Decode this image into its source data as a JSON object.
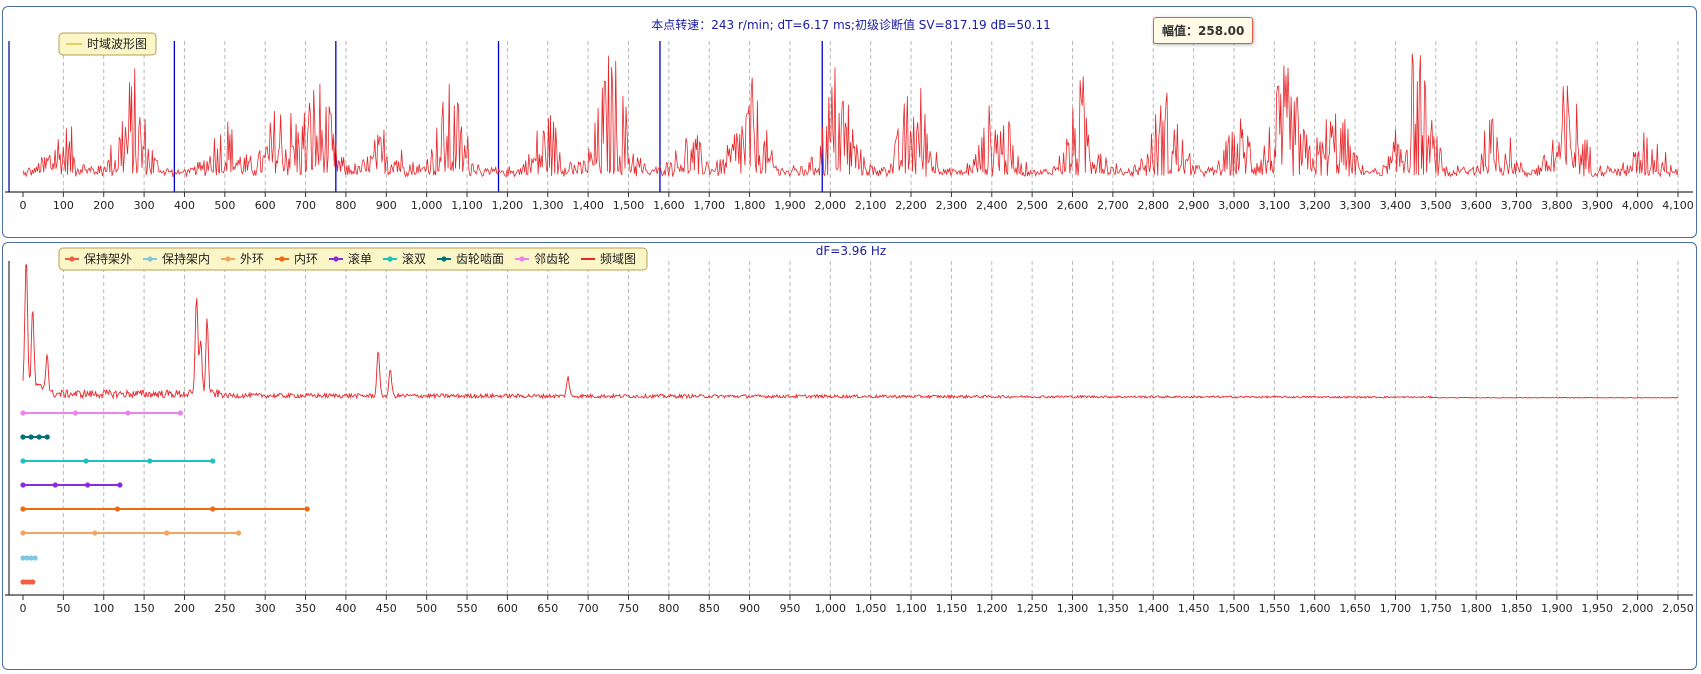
{
  "top_chart": {
    "title": "本点转速：243 r/min; dT=6.17 ms;初级诊断值 SV=817.19 dB=50.11",
    "legend": "时域波形图",
    "tooltip": {
      "label": "幅值：",
      "value": "258.00"
    },
    "colors": {
      "wave": "#e8262a",
      "cursor": "#0000cc",
      "grid": "#b8b8b8",
      "legend_bg": "#fbf6c8",
      "legend_border": "#b8a050"
    }
  },
  "bottom_chart": {
    "title": "dF=3.96 Hz",
    "legend": [
      "保持架外",
      "保持架内",
      "外环",
      "内环",
      "滚单",
      "滚双",
      "齿轮啮面",
      "邻齿轮",
      "频域图"
    ]
  },
  "chart_data": [
    {
      "type": "line",
      "title": "本点转速：243 r/min; dT=6.17 ms;初级诊断值 SV=817.19 dB=50.11",
      "xlabel": "",
      "ylabel": "",
      "xlim": [
        0,
        4100
      ],
      "x_ticks": [
        "0",
        "100",
        "200",
        "300",
        "400",
        "500",
        "600",
        "700",
        "800",
        "900",
        "1,000",
        "1,100",
        "1,200",
        "1,300",
        "1,400",
        "1,500",
        "1,600",
        "1,700",
        "1,800",
        "1,900",
        "2,000",
        "2,100",
        "2,200",
        "2,300",
        "2,400",
        "2,500",
        "2,600",
        "2,700",
        "2,800",
        "2,900",
        "3,000",
        "3,100",
        "3,200",
        "3,300",
        "3,400",
        "3,500",
        "3,600",
        "3,700",
        "3,800",
        "3,900",
        "4,000",
        "4,100"
      ],
      "grid": "vertical dashed",
      "legend_placement": "top-left",
      "series": [
        {
          "name": "时域波形图",
          "color": "#e8262a",
          "baseline": 5,
          "bursts": [
            {
              "x": 100,
              "peak": 50
            },
            {
              "x": 270,
              "peak": 100
            },
            {
              "x": 500,
              "peak": 55
            },
            {
              "x": 640,
              "peak": 70
            },
            {
              "x": 730,
              "peak": 95
            },
            {
              "x": 900,
              "peak": 45
            },
            {
              "x": 1060,
              "peak": 85
            },
            {
              "x": 1300,
              "peak": 60
            },
            {
              "x": 1460,
              "peak": 120
            },
            {
              "x": 1650,
              "peak": 40
            },
            {
              "x": 1800,
              "peak": 90
            },
            {
              "x": 2020,
              "peak": 110
            },
            {
              "x": 2210,
              "peak": 95
            },
            {
              "x": 2410,
              "peak": 75
            },
            {
              "x": 2630,
              "peak": 95
            },
            {
              "x": 2830,
              "peak": 80
            },
            {
              "x": 3020,
              "peak": 55
            },
            {
              "x": 3130,
              "peak": 100
            },
            {
              "x": 3250,
              "peak": 70
            },
            {
              "x": 3450,
              "peak": 120
            },
            {
              "x": 3650,
              "peak": 55
            },
            {
              "x": 3830,
              "peak": 90
            },
            {
              "x": 4030,
              "peak": 40
            }
          ]
        }
      ],
      "cursors_x": [
        -40,
        375,
        775,
        1178,
        1578,
        1980
      ]
    },
    {
      "type": "line",
      "title": "dF=3.96 Hz",
      "xlabel": "",
      "ylabel": "",
      "xlim": [
        0,
        2050
      ],
      "x_ticks": [
        "0",
        "50",
        "100",
        "150",
        "200",
        "250",
        "300",
        "350",
        "400",
        "450",
        "500",
        "550",
        "600",
        "650",
        "700",
        "750",
        "800",
        "850",
        "900",
        "950",
        "1,000",
        "1,050",
        "1,100",
        "1,150",
        "1,200",
        "1,250",
        "1,300",
        "1,350",
        "1,400",
        "1,450",
        "1,500",
        "1,550",
        "1,600",
        "1,650",
        "1,700",
        "1,750",
        "1,800",
        "1,850",
        "1,900",
        "1,950",
        "2,000",
        "2,050"
      ],
      "grid": "vertical dashed",
      "legend_placement": "top-left",
      "spectrum": {
        "name": "频域图",
        "color": "#e8262a",
        "peaks": [
          {
            "x": 4,
            "v": 1.0
          },
          {
            "x": 12,
            "v": 0.58
          },
          {
            "x": 30,
            "v": 0.28
          },
          {
            "x": 215,
            "v": 0.73
          },
          {
            "x": 228,
            "v": 0.55
          },
          {
            "x": 220,
            "v": 0.4
          },
          {
            "x": 440,
            "v": 0.35
          },
          {
            "x": 455,
            "v": 0.2
          },
          {
            "x": 675,
            "v": 0.15
          }
        ],
        "noise_end": 1750
      },
      "fault_series": [
        {
          "name": "邻齿轮",
          "color": "#ee82ee",
          "x": [
            0,
            65,
            130,
            195
          ]
        },
        {
          "name": "齿轮啮面",
          "color": "#00707a",
          "x": [
            0,
            10,
            20,
            30
          ]
        },
        {
          "name": "滚双",
          "color": "#20c0c0",
          "x": [
            0,
            78,
            157,
            235
          ]
        },
        {
          "name": "滚单",
          "color": "#8a2be2",
          "x": [
            0,
            40,
            80,
            120
          ]
        },
        {
          "name": "内环",
          "color": "#ee6a10",
          "x": [
            0,
            117,
            235,
            352
          ]
        },
        {
          "name": "外环",
          "color": "#f4a460",
          "x": [
            0,
            89,
            178,
            267
          ]
        },
        {
          "name": "保持架内",
          "color": "#80c8e0",
          "x": [
            0,
            5,
            10,
            15
          ]
        },
        {
          "name": "保持架外",
          "color": "#f06040",
          "x": [
            0,
            4,
            8,
            12
          ]
        }
      ],
      "legend_order": [
        {
          "name": "保持架外",
          "color": "#f06040"
        },
        {
          "name": "保持架内",
          "color": "#80c8e0"
        },
        {
          "name": "外环",
          "color": "#f4a460"
        },
        {
          "name": "内环",
          "color": "#ee6a10"
        },
        {
          "name": "滚单",
          "color": "#8a2be2"
        },
        {
          "name": "滚双",
          "color": "#20c0c0"
        },
        {
          "name": "齿轮啮面",
          "color": "#00707a"
        },
        {
          "name": "邻齿轮",
          "color": "#ee82ee"
        },
        {
          "name": "频域图",
          "color": "#e8262a"
        }
      ]
    }
  ]
}
